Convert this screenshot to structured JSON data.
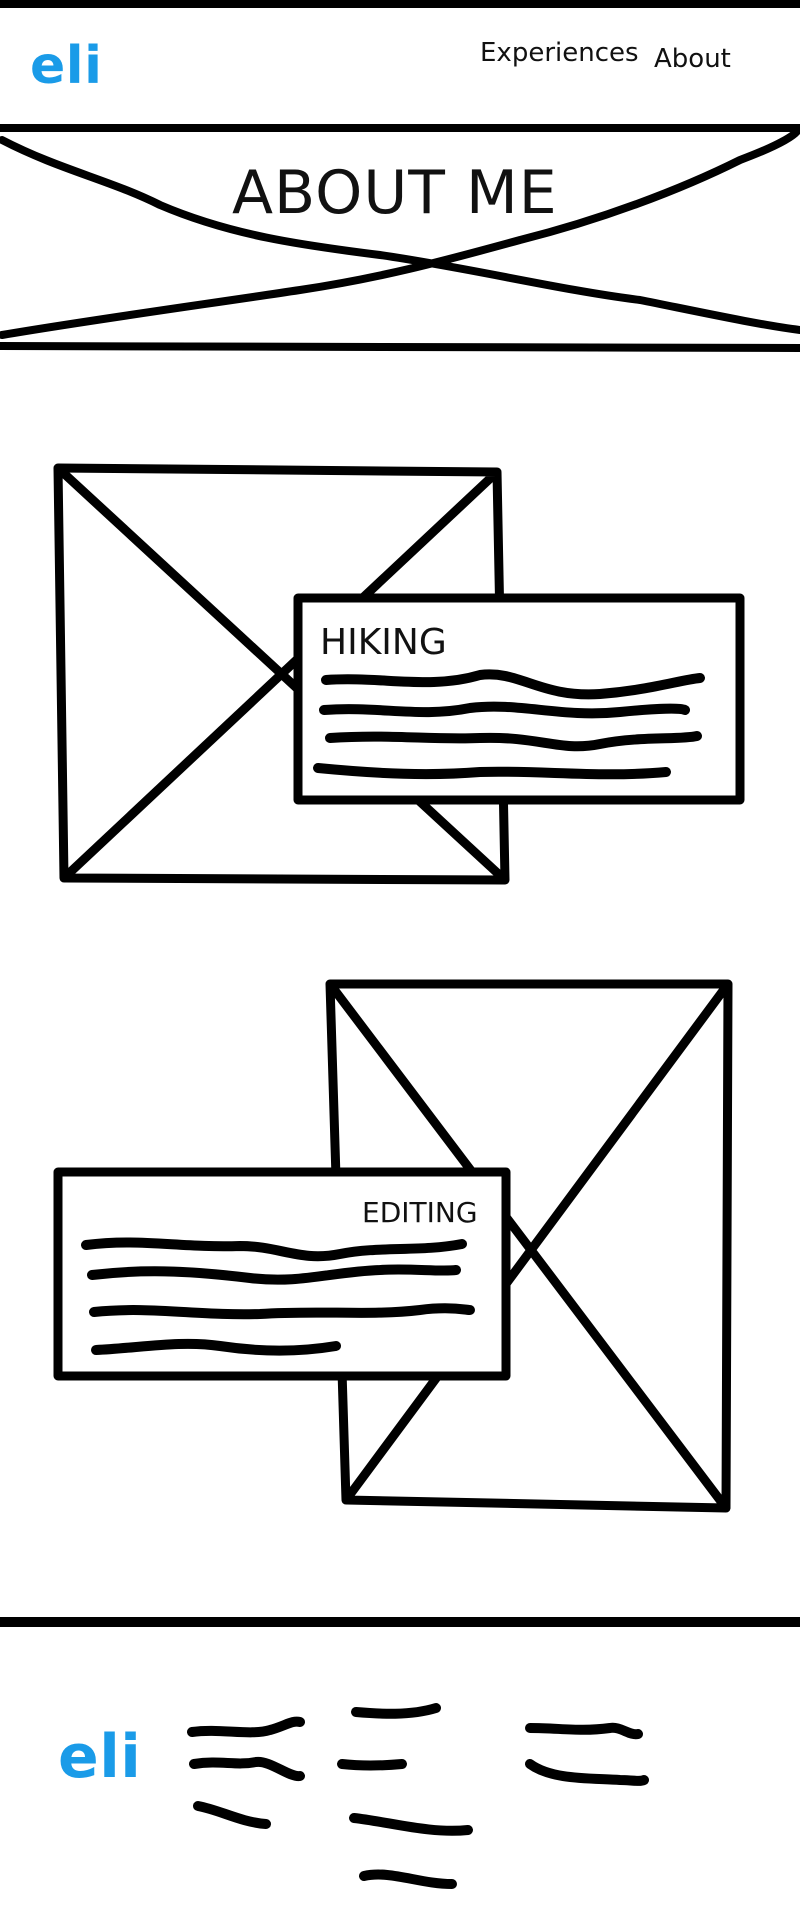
{
  "header": {
    "logo": "eli",
    "nav": [
      {
        "label": "Experiences"
      },
      {
        "label": "About"
      }
    ]
  },
  "hero": {
    "title": "ABOUT ME"
  },
  "sections": [
    {
      "title": "HIKING"
    },
    {
      "title": "EDITING"
    }
  ],
  "footer": {
    "logo": "eli"
  },
  "colors": {
    "brand": "#1a9be8",
    "ink": "#000000"
  }
}
